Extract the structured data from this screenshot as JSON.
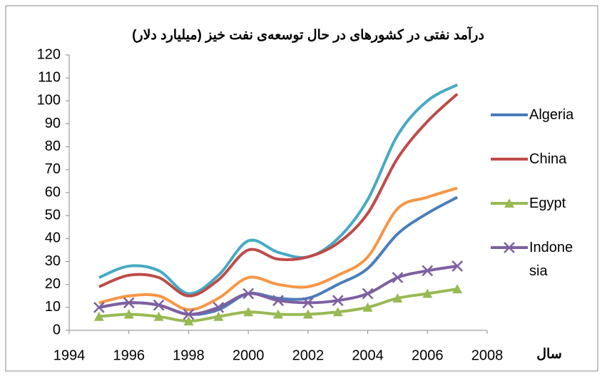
{
  "chart_data": {
    "type": "line",
    "title": "درآمد نفتی در کشورهای در حال توسعه‌ی نفت خیز (میلیارد دلار)",
    "x_label": "سال",
    "x": [
      1995,
      1996,
      1997,
      1998,
      1999,
      2000,
      2001,
      2002,
      2003,
      2004,
      2005,
      2006,
      2007
    ],
    "series": [
      {
        "color": "#46aac5",
        "values": [
          23,
          28,
          26,
          16,
          24,
          39,
          34,
          32,
          40,
          57,
          85,
          100,
          107
        ]
      },
      {
        "color": "#f79646",
        "values": [
          12,
          15,
          15,
          9,
          14,
          23,
          20,
          19,
          24,
          32,
          53,
          58,
          62
        ]
      },
      {
        "name": "Algeria",
        "color": "#4a7ebb",
        "values": [
          10,
          12,
          11,
          7,
          9,
          16,
          14,
          14,
          20,
          27,
          42,
          51,
          58
        ]
      },
      {
        "name": "China",
        "color": "#be4b48",
        "values": [
          19,
          24,
          23,
          15,
          22,
          35,
          31,
          32,
          38,
          51,
          75,
          91,
          103
        ]
      },
      {
        "name": "Egypt",
        "color": "#98b954",
        "marker": "triangle",
        "values": [
          6,
          7,
          6,
          4,
          6,
          8,
          7,
          7,
          8,
          10,
          14,
          16,
          18
        ]
      },
      {
        "name": "Indonesia",
        "color": "#7d60a0",
        "marker": "x",
        "values": [
          10,
          12,
          11,
          7,
          10,
          16,
          13,
          12,
          13,
          16,
          23,
          26,
          28
        ]
      }
    ],
    "xlim": [
      1994,
      2008
    ],
    "xticks": [
      1994,
      1996,
      1998,
      2000,
      2002,
      2004,
      2006,
      2008
    ],
    "ylim": [
      0,
      120
    ],
    "yticks": [
      0,
      10,
      20,
      30,
      40,
      50,
      60,
      70,
      80,
      90,
      100,
      110,
      120
    ],
    "grid": false,
    "legend": "right"
  }
}
